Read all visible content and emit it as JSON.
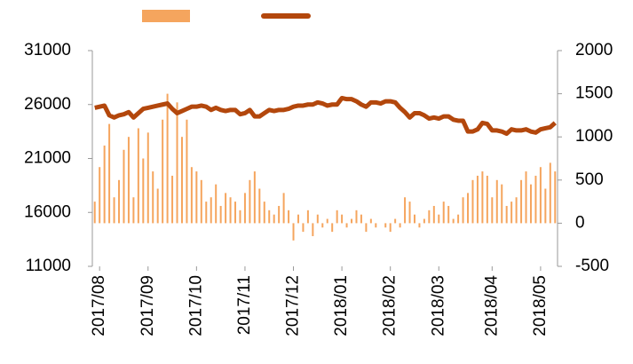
{
  "chart_data": {
    "type": "bar_line",
    "categories": [
      null,
      "2017/08",
      null,
      null,
      null,
      null,
      null,
      null,
      null,
      null,
      null,
      "2017/09",
      null,
      null,
      null,
      null,
      null,
      null,
      null,
      null,
      null,
      "2017/10",
      null,
      null,
      null,
      null,
      null,
      null,
      null,
      null,
      null,
      "2017/11",
      null,
      null,
      null,
      null,
      null,
      null,
      null,
      null,
      null,
      "2017/12",
      null,
      null,
      null,
      null,
      null,
      null,
      null,
      null,
      null,
      "2018/01",
      null,
      null,
      null,
      null,
      null,
      null,
      null,
      null,
      null,
      "2018/02",
      null,
      null,
      null,
      null,
      null,
      null,
      null,
      null,
      null,
      "2018/03",
      null,
      null,
      null,
      null,
      null,
      null,
      null,
      null,
      null,
      null,
      "2018/04",
      null,
      null,
      null,
      null,
      null,
      null,
      null,
      null,
      null,
      "2018/05",
      null,
      null,
      null
    ],
    "series": [
      {
        "type": "bar",
        "axis": "y2",
        "color": "#f5a55e",
        "values": [
          250,
          650,
          900,
          1150,
          300,
          500,
          850,
          1000,
          300,
          1100,
          750,
          1050,
          600,
          400,
          1200,
          1500,
          550,
          1400,
          1000,
          1200,
          650,
          600,
          500,
          250,
          300,
          450,
          200,
          350,
          300,
          250,
          150,
          350,
          500,
          600,
          400,
          250,
          150,
          100,
          200,
          350,
          150,
          -200,
          100,
          -100,
          150,
          -150,
          100,
          -50,
          50,
          -100,
          150,
          100,
          -50,
          50,
          150,
          100,
          -100,
          50,
          -50,
          0,
          -50,
          -100,
          50,
          -50,
          300,
          250,
          100,
          -50,
          50,
          150,
          200,
          100,
          250,
          200,
          50,
          100,
          300,
          350,
          500,
          550,
          600,
          550,
          300,
          500,
          450,
          200,
          250,
          300,
          500,
          600,
          450,
          550,
          650,
          400,
          700,
          600
        ]
      },
      {
        "type": "line",
        "axis": "y",
        "color": "#b3470c",
        "values": [
          25700,
          25800,
          25900,
          25000,
          24800,
          25000,
          25100,
          25300,
          24800,
          25200,
          25600,
          25700,
          25800,
          25900,
          26000,
          26100,
          25600,
          25200,
          25400,
          25600,
          25800,
          25800,
          25900,
          25800,
          25500,
          25700,
          25500,
          25400,
          25500,
          25500,
          25100,
          25200,
          25500,
          24900,
          24900,
          25200,
          25500,
          25400,
          25500,
          25500,
          25600,
          25800,
          25900,
          25900,
          26000,
          26000,
          26200,
          26100,
          25900,
          26000,
          26000,
          26600,
          26500,
          26500,
          26300,
          26000,
          25800,
          26200,
          26200,
          26100,
          26300,
          26300,
          26200,
          25700,
          25300,
          24800,
          25200,
          25200,
          25000,
          24700,
          24800,
          24700,
          24900,
          24900,
          24600,
          24500,
          24500,
          23500,
          23500,
          23700,
          24300,
          24200,
          23600,
          23600,
          23500,
          23300,
          23700,
          23600,
          23600,
          23700,
          23500,
          23400,
          23700,
          23800,
          23900,
          24300
        ]
      }
    ],
    "ylim": [
      11000,
      31000
    ],
    "yticks": [
      11000,
      16000,
      21000,
      26000,
      31000
    ],
    "y2lim": [
      -500,
      2000
    ],
    "y2ticks": [
      -500,
      0,
      500,
      1000,
      1500,
      2000
    ]
  }
}
